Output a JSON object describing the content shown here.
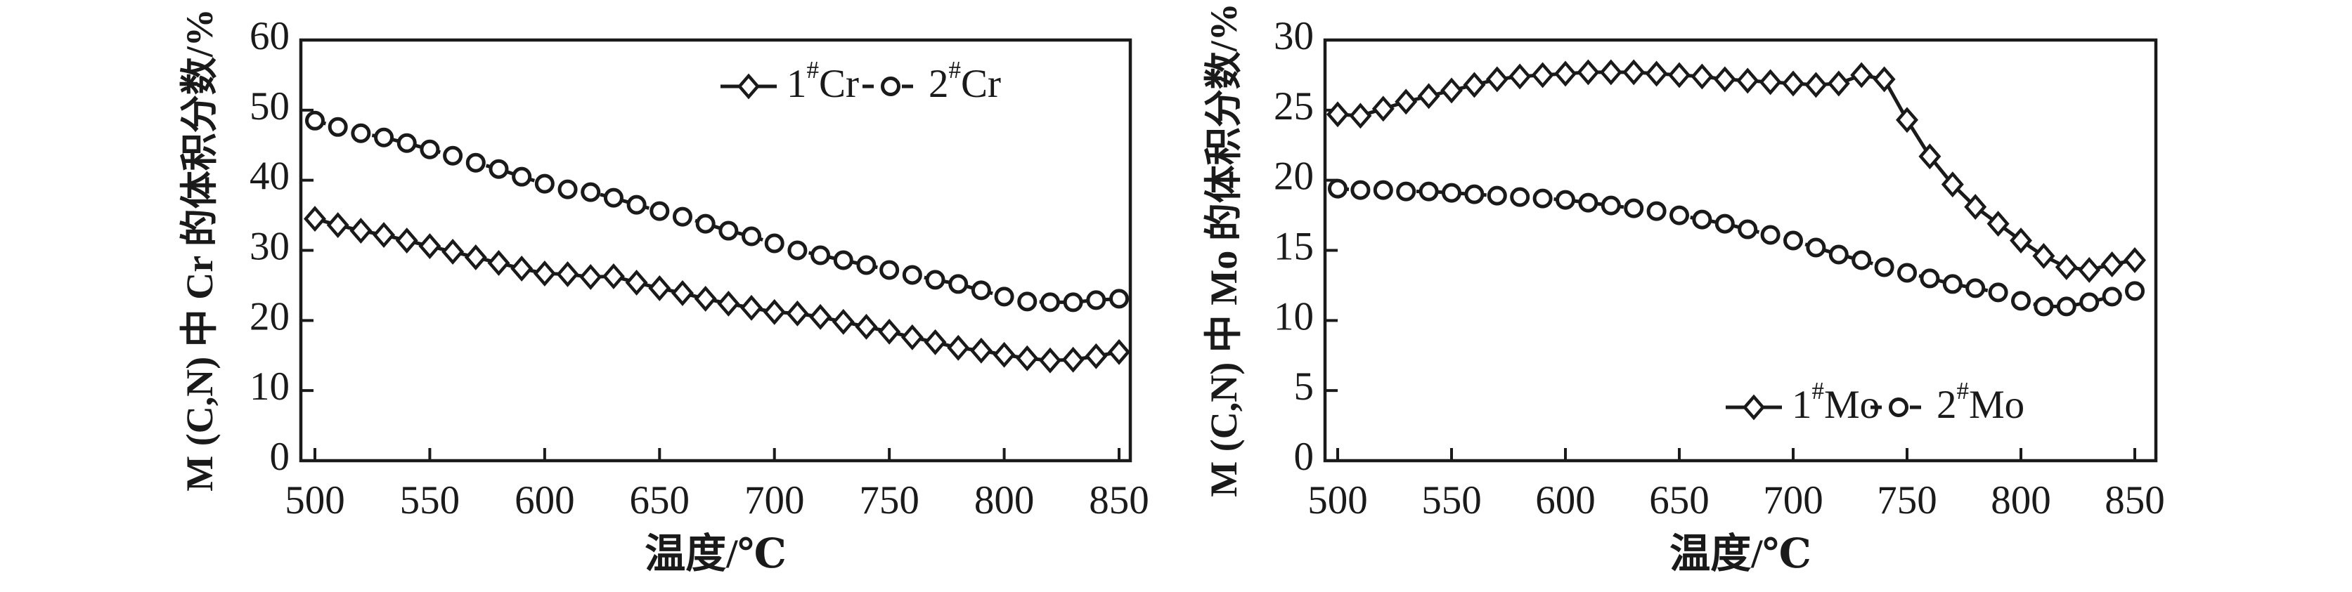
{
  "figure": {
    "background": "#ffffff",
    "ink": "#1a1a1a",
    "description": "Two-panel line chart: volume fraction of Cr (left) and Mo (right) in M(C,N) precipitates versus temperature"
  },
  "chart_data": [
    {
      "id": "cr",
      "type": "line",
      "title": "",
      "xlabel": "温度/℃",
      "ylabel": "M (C,N) 中 Cr 的体积分数/%",
      "xlim": [
        500,
        850
      ],
      "ylim": [
        0,
        60
      ],
      "xticks": [
        500,
        550,
        600,
        650,
        700,
        750,
        800,
        850
      ],
      "yticks": [
        0,
        10,
        20,
        30,
        40,
        50,
        60
      ],
      "grid": false,
      "legend_position": "inside-top-right",
      "x": [
        500,
        510,
        520,
        530,
        540,
        550,
        560,
        570,
        580,
        590,
        600,
        610,
        620,
        630,
        640,
        650,
        660,
        670,
        680,
        690,
        700,
        710,
        720,
        730,
        740,
        750,
        760,
        770,
        780,
        790,
        800,
        810,
        820,
        830,
        840,
        850
      ],
      "series": [
        {
          "name": "1#Cr",
          "line": "solid",
          "marker": "diamond",
          "values": [
            34.5,
            33.6,
            32.8,
            32.2,
            31.4,
            30.6,
            29.8,
            29.0,
            28.2,
            27.4,
            26.7,
            26.6,
            26.2,
            26.3,
            25.4,
            24.6,
            23.9,
            23.1,
            22.4,
            21.8,
            21.2,
            21.0,
            20.5,
            19.8,
            19.1,
            18.4,
            17.6,
            16.9,
            16.1,
            15.7,
            15.1,
            14.6,
            14.3,
            14.4,
            14.9,
            15.5
          ]
        },
        {
          "name": "2#Cr",
          "line": "dashed",
          "marker": "circle",
          "values": [
            48.5,
            47.6,
            46.7,
            46.1,
            45.3,
            44.4,
            43.5,
            42.5,
            41.6,
            40.5,
            39.5,
            38.7,
            38.3,
            37.5,
            36.5,
            35.6,
            34.8,
            33.8,
            32.8,
            32.0,
            31.0,
            30.0,
            29.3,
            28.6,
            27.9,
            27.2,
            26.5,
            25.8,
            25.2,
            24.3,
            23.4,
            22.7,
            22.6,
            22.6,
            22.9,
            23.1
          ]
        }
      ]
    },
    {
      "id": "mo",
      "type": "line",
      "title": "",
      "xlabel": "温度/℃",
      "ylabel": "M (C,N) 中 Mo 的体积分数/%",
      "xlim": [
        500,
        850
      ],
      "ylim": [
        0,
        30
      ],
      "xticks": [
        500,
        550,
        600,
        650,
        700,
        750,
        800,
        850
      ],
      "yticks": [
        0,
        5,
        10,
        15,
        20,
        25,
        30
      ],
      "grid": false,
      "legend_position": "inside-bottom-center",
      "x": [
        500,
        510,
        520,
        530,
        540,
        550,
        560,
        570,
        580,
        590,
        600,
        610,
        620,
        630,
        640,
        650,
        660,
        670,
        680,
        690,
        700,
        710,
        720,
        730,
        740,
        750,
        760,
        770,
        780,
        790,
        800,
        810,
        820,
        830,
        840,
        850
      ],
      "series": [
        {
          "name": "1#Mo",
          "line": "solid",
          "marker": "diamond",
          "values": [
            24.7,
            24.6,
            25.1,
            25.6,
            26.0,
            26.4,
            26.8,
            27.2,
            27.4,
            27.5,
            27.6,
            27.7,
            27.7,
            27.7,
            27.6,
            27.5,
            27.4,
            27.2,
            27.1,
            27.0,
            26.9,
            26.8,
            26.9,
            27.5,
            27.2,
            24.3,
            21.7,
            19.7,
            18.1,
            16.9,
            15.7,
            14.6,
            13.8,
            13.6,
            14.0,
            14.3
          ]
        },
        {
          "name": "2#Mo",
          "line": "dashed",
          "marker": "circle",
          "values": [
            19.4,
            19.3,
            19.3,
            19.2,
            19.2,
            19.1,
            19.0,
            18.9,
            18.8,
            18.7,
            18.6,
            18.4,
            18.2,
            18.0,
            17.8,
            17.5,
            17.2,
            16.9,
            16.5,
            16.1,
            15.7,
            15.2,
            14.7,
            14.3,
            13.8,
            13.4,
            13.0,
            12.6,
            12.3,
            12.0,
            11.4,
            11.0,
            11.0,
            11.3,
            11.7,
            12.1
          ]
        }
      ]
    }
  ]
}
